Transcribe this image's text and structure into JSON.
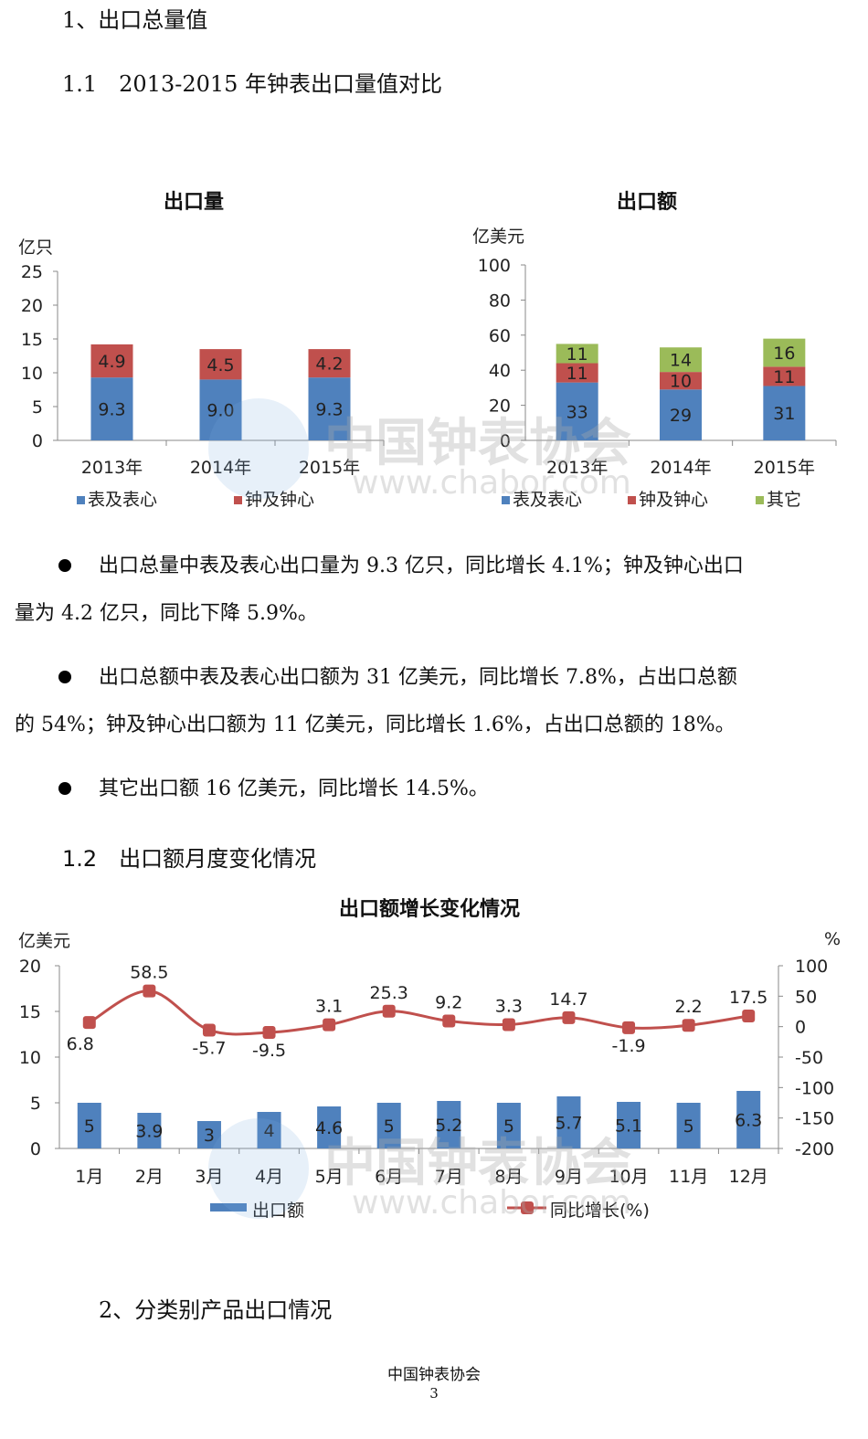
{
  "headings": {
    "h1": "1、出口总量值",
    "h11": "1.1　2013-2015 年钟表出口量值对比",
    "h12": "1.2　出口额月度变化情况",
    "h2": "2、分类别产品出口情况"
  },
  "bullets": [
    {
      "line1": "出口总量中表及表心出口量为 9.3 亿只，同比增长 4.1%；钟及钟心出口",
      "line2": "量为 4.2 亿只，同比下降 5.9%。"
    },
    {
      "line1": "出口总额中表及表心出口额为 31 亿美元，同比增长 7.8%，占出口总额",
      "line2": "的 54%；钟及钟心出口额为 11 亿美元，同比增长 1.6%，占出口总额的 18%。"
    },
    {
      "line1": "其它出口额 16 亿美元，同比增长 14.5%。",
      "line2": ""
    }
  ],
  "watermark": {
    "cn": "中国钟表协会",
    "url": "www.chabor.com"
  },
  "footer": {
    "org": "中国钟表协会",
    "page": "3"
  },
  "chart_data": [
    {
      "type": "bar",
      "stacked": true,
      "title": "出口量",
      "ylabel": "亿只",
      "ylim": [
        0,
        25
      ],
      "yticks": [
        0,
        5,
        10,
        15,
        20,
        25
      ],
      "categories": [
        "2013年",
        "2014年",
        "2015年"
      ],
      "series": [
        {
          "name": "表及表心",
          "color": "#4f81bd",
          "values": [
            9.3,
            9.0,
            9.3
          ],
          "labels": [
            "9.3",
            "9.0",
            "9.3"
          ]
        },
        {
          "name": "钟及钟心",
          "color": "#c0504d",
          "values": [
            4.9,
            4.5,
            4.2
          ],
          "labels": [
            "4.9",
            "4.5",
            "4.2"
          ]
        }
      ],
      "legend": "bottom"
    },
    {
      "type": "bar",
      "stacked": true,
      "title": "出口额",
      "ylabel": "亿美元",
      "ylim": [
        0,
        100
      ],
      "yticks": [
        0,
        20,
        40,
        60,
        80,
        100
      ],
      "categories": [
        "2013年",
        "2014年",
        "2015年"
      ],
      "series": [
        {
          "name": "表及表心",
          "color": "#4f81bd",
          "values": [
            33,
            29,
            31
          ],
          "labels": [
            "33",
            "29",
            "31"
          ]
        },
        {
          "name": "钟及钟心",
          "color": "#c0504d",
          "values": [
            11,
            10,
            11
          ],
          "labels": [
            "11",
            "10",
            "11"
          ]
        },
        {
          "name": "其它",
          "color": "#9bbb59",
          "values": [
            11,
            14,
            16
          ],
          "labels": [
            "11",
            "14",
            "16"
          ]
        }
      ],
      "legend": "bottom"
    },
    {
      "type": "bar+line",
      "title": "出口额增长变化情况",
      "ylabel": "亿美元",
      "y2label": "%",
      "ylim": [
        0,
        20
      ],
      "yticks": [
        0,
        5,
        10,
        15,
        20
      ],
      "y2lim": [
        -200,
        100
      ],
      "y2ticks": [
        100,
        50,
        0,
        -50,
        -100,
        -150,
        -200
      ],
      "categories": [
        "1月",
        "2月",
        "3月",
        "4月",
        "5月",
        "6月",
        "7月",
        "8月",
        "9月",
        "10月",
        "11月",
        "12月"
      ],
      "bars": {
        "name": "出口额",
        "color": "#4f81bd",
        "values": [
          5,
          3.9,
          3,
          4,
          4.6,
          5,
          5.2,
          5,
          5.7,
          5.1,
          5,
          6.3
        ],
        "labels": [
          "5",
          "3.9",
          "3",
          "4",
          "4.6",
          "5",
          "5.2",
          "5",
          "5.7",
          "5.1",
          "5",
          "6.3"
        ]
      },
      "line": {
        "name": "同比增长(%)",
        "color": "#c0504d",
        "values": [
          6.8,
          58.5,
          -5.7,
          -9.5,
          3.1,
          25.3,
          9.2,
          3.3,
          14.7,
          -1.9,
          2.2,
          17.5
        ],
        "labels": [
          "6.8",
          "58.5",
          "-5.7",
          "-9.5",
          "3.1",
          "25.3",
          "9.2",
          "3.3",
          "14.7",
          "-1.9",
          "2.2",
          "17.5"
        ]
      },
      "legend": "bottom"
    }
  ]
}
